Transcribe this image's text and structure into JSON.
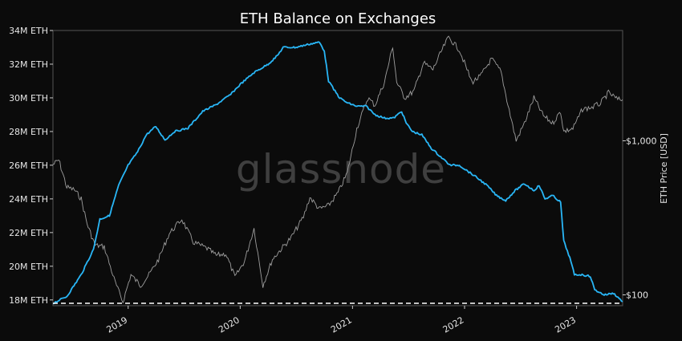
{
  "chart_data": {
    "type": "line",
    "title": "ETH Balance on Exchanges",
    "watermark": "glassnode",
    "xlabel": "",
    "ylabel": "",
    "y2label": "ETH Price [USD]",
    "x_ticks": [
      "2019",
      "2020",
      "2021",
      "2022",
      "2023"
    ],
    "y_ticks": [
      "18M ETH",
      "20M ETH",
      "22M ETH",
      "24M ETH",
      "26M ETH",
      "28M ETH",
      "30M ETH",
      "32M ETH",
      "34M ETH"
    ],
    "y2_ticks": [
      "$100",
      "$1,000"
    ],
    "xlim": [
      "2018-05-01",
      "2023-05-31"
    ],
    "ylim": [
      17.8,
      34
    ],
    "y2lim_log": [
      85,
      5200
    ],
    "grid": false,
    "reference_line": {
      "y": 17.8,
      "style": "dashed",
      "color": "#ffffff"
    },
    "series": [
      {
        "axis": "left",
        "color": "#29b6f6",
        "points": [
          [
            "2018-05-01",
            17.8
          ],
          [
            "2018-06-15",
            18.2
          ],
          [
            "2018-08-01",
            19.5
          ],
          [
            "2018-09-10",
            21.0
          ],
          [
            "2018-10-01",
            22.8
          ],
          [
            "2018-11-01",
            23.0
          ],
          [
            "2018-12-01",
            24.8
          ],
          [
            "2019-01-01",
            26.0
          ],
          [
            "2019-02-01",
            26.8
          ],
          [
            "2019-03-01",
            27.8
          ],
          [
            "2019-04-01",
            28.3
          ],
          [
            "2019-05-01",
            27.5
          ],
          [
            "2019-06-01",
            28.0
          ],
          [
            "2019-07-15",
            28.2
          ],
          [
            "2019-09-01",
            29.2
          ],
          [
            "2019-10-15",
            29.6
          ],
          [
            "2019-12-01",
            30.2
          ],
          [
            "2020-01-01",
            30.8
          ],
          [
            "2020-02-15",
            31.5
          ],
          [
            "2020-04-01",
            32.0
          ],
          [
            "2020-05-01",
            32.5
          ],
          [
            "2020-05-20",
            33.0
          ],
          [
            "2020-07-01",
            33.0
          ],
          [
            "2020-08-15",
            33.2
          ],
          [
            "2020-09-15",
            33.3
          ],
          [
            "2020-10-01",
            32.8
          ],
          [
            "2020-10-15",
            31.0
          ],
          [
            "2020-11-01",
            30.5
          ],
          [
            "2020-11-20",
            30.0
          ],
          [
            "2020-12-15",
            29.7
          ],
          [
            "2021-01-15",
            29.5
          ],
          [
            "2021-02-15",
            29.5
          ],
          [
            "2021-03-15",
            29.0
          ],
          [
            "2021-04-15",
            28.8
          ],
          [
            "2021-05-15",
            28.8
          ],
          [
            "2021-06-10",
            29.2
          ],
          [
            "2021-06-25",
            28.5
          ],
          [
            "2021-07-15",
            28.0
          ],
          [
            "2021-08-15",
            27.8
          ],
          [
            "2021-09-15",
            27.0
          ],
          [
            "2021-10-15",
            26.5
          ],
          [
            "2021-11-15",
            26.0
          ],
          [
            "2021-12-15",
            26.0
          ],
          [
            "2022-01-15",
            25.6
          ],
          [
            "2022-02-15",
            25.2
          ],
          [
            "2022-03-15",
            24.8
          ],
          [
            "2022-04-15",
            24.2
          ],
          [
            "2022-05-15",
            23.9
          ],
          [
            "2022-06-15",
            24.5
          ],
          [
            "2022-07-15",
            24.9
          ],
          [
            "2022-08-15",
            24.5
          ],
          [
            "2022-09-01",
            24.8
          ],
          [
            "2022-09-20",
            24.0
          ],
          [
            "2022-10-15",
            24.2
          ],
          [
            "2022-11-10",
            23.8
          ],
          [
            "2022-11-20",
            21.5
          ],
          [
            "2022-12-10",
            20.5
          ],
          [
            "2022-12-25",
            19.5
          ],
          [
            "2023-01-15",
            19.5
          ],
          [
            "2023-02-15",
            19.4
          ],
          [
            "2023-03-01",
            18.6
          ],
          [
            "2023-04-01",
            18.3
          ],
          [
            "2023-05-01",
            18.4
          ],
          [
            "2023-05-31",
            17.9
          ]
        ]
      },
      {
        "axis": "right",
        "color": "#9e9e9e",
        "points": [
          [
            "2018-05-01",
            700
          ],
          [
            "2018-05-20",
            750
          ],
          [
            "2018-06-15",
            500
          ],
          [
            "2018-07-10",
            480
          ],
          [
            "2018-08-01",
            420
          ],
          [
            "2018-08-20",
            290
          ],
          [
            "2018-09-15",
            210
          ],
          [
            "2018-10-15",
            205
          ],
          [
            "2018-11-20",
            120
          ],
          [
            "2018-12-15",
            90
          ],
          [
            "2019-01-10",
            135
          ],
          [
            "2019-02-10",
            115
          ],
          [
            "2019-03-10",
            135
          ],
          [
            "2019-04-10",
            170
          ],
          [
            "2019-05-15",
            250
          ],
          [
            "2019-06-25",
            310
          ],
          [
            "2019-08-01",
            220
          ],
          [
            "2019-09-15",
            200
          ],
          [
            "2019-10-15",
            180
          ],
          [
            "2019-11-15",
            185
          ],
          [
            "2019-12-15",
            130
          ],
          [
            "2020-01-15",
            165
          ],
          [
            "2020-02-15",
            270
          ],
          [
            "2020-03-15",
            115
          ],
          [
            "2020-04-15",
            170
          ],
          [
            "2020-05-15",
            200
          ],
          [
            "2020-06-15",
            235
          ],
          [
            "2020-07-25",
            320
          ],
          [
            "2020-08-15",
            430
          ],
          [
            "2020-09-15",
            360
          ],
          [
            "2020-10-15",
            380
          ],
          [
            "2020-11-15",
            460
          ],
          [
            "2020-12-15",
            620
          ],
          [
            "2021-01-15",
            1200
          ],
          [
            "2021-02-20",
            1900
          ],
          [
            "2021-03-15",
            1700
          ],
          [
            "2021-04-15",
            2400
          ],
          [
            "2021-05-12",
            4100
          ],
          [
            "2021-05-25",
            2400
          ],
          [
            "2021-06-20",
            1900
          ],
          [
            "2021-07-20",
            2100
          ],
          [
            "2021-08-20",
            3200
          ],
          [
            "2021-09-20",
            2900
          ],
          [
            "2021-10-20",
            3900
          ],
          [
            "2021-11-10",
            4700
          ],
          [
            "2021-12-15",
            3900
          ],
          [
            "2022-01-25",
            2400
          ],
          [
            "2022-02-20",
            2600
          ],
          [
            "2022-03-30",
            3400
          ],
          [
            "2022-04-30",
            2800
          ],
          [
            "2022-05-15",
            2000
          ],
          [
            "2022-06-18",
            1000
          ],
          [
            "2022-07-15",
            1300
          ],
          [
            "2022-08-15",
            1900
          ],
          [
            "2022-09-15",
            1450
          ],
          [
            "2022-10-15",
            1300
          ],
          [
            "2022-11-10",
            1550
          ],
          [
            "2022-11-20",
            1150
          ],
          [
            "2022-12-20",
            1200
          ],
          [
            "2023-01-20",
            1600
          ],
          [
            "2023-02-20",
            1650
          ],
          [
            "2023-03-20",
            1750
          ],
          [
            "2023-04-15",
            2050
          ],
          [
            "2023-05-15",
            1850
          ],
          [
            "2023-05-31",
            1850
          ]
        ]
      }
    ]
  }
}
